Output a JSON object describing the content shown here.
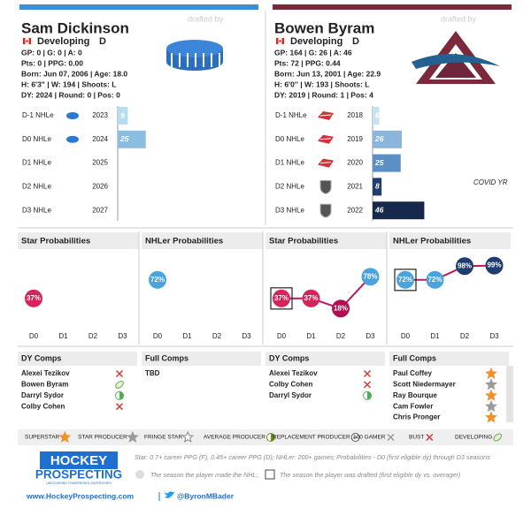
{
  "players": [
    {
      "name": "Sam Dickinson",
      "drafted_by": "drafted by",
      "color": "#3a8fd6",
      "status": "Developing",
      "position": "D",
      "stats": [
        "GP: 0 | G: 0 | A: 0",
        "Pts: 0 | PPG: 0.00",
        "Born: Jun 07, 2006 | Age: 18.0",
        "H: 6'3\" | W: 194 | Shoots: L",
        "DY: 2024 | Round: 0 | Pos: 0"
      ],
      "team_logo": "puck",
      "nhle": [
        {
          "label": "D-1 NHLe",
          "logo": "OHL",
          "year": 2023,
          "value": 9,
          "color": "#b9dcf2"
        },
        {
          "label": "D0 NHLe",
          "logo": "OHL",
          "year": 2024,
          "value": 25,
          "color": "#8bbde0"
        },
        {
          "label": "D1 NHLe",
          "logo": null,
          "year": 2025,
          "value": null,
          "color": null
        },
        {
          "label": "D2 NHLe",
          "logo": null,
          "year": 2026,
          "value": null,
          "color": null
        },
        {
          "label": "D3 NHLe",
          "logo": null,
          "year": 2027,
          "value": null,
          "color": null
        }
      ],
      "note": null,
      "probabilities": [
        {
          "title": "Star Probabilities",
          "categories": [
            "D0",
            "D1",
            "D2",
            "D3"
          ],
          "values": [
            37,
            null,
            null,
            null
          ],
          "value_labels": [
            "37%",
            null,
            null,
            null
          ],
          "colors": [
            "#d6245a",
            null,
            null,
            null
          ],
          "ylim": [
            0,
            100
          ],
          "drafted_box": null
        },
        {
          "title": "NHLer Probabilities",
          "categories": [
            "D0",
            "D1",
            "D2",
            "D3"
          ],
          "values": [
            72,
            null,
            null,
            null
          ],
          "value_labels": [
            "72%",
            null,
            null,
            null
          ],
          "colors": [
            "#4aa3df",
            null,
            null,
            null
          ],
          "ylim": [
            0,
            100
          ],
          "drafted_box": null
        }
      ],
      "comps": [
        {
          "title": "DY Comps",
          "rows": [
            {
              "name": "Alexei Tezikov",
              "icon": "bust"
            },
            {
              "name": "Bowen Byram",
              "icon": "developing"
            },
            {
              "name": "Darryl Sydor",
              "icon": "replacement"
            },
            {
              "name": "Colby Cohen",
              "icon": "bust"
            }
          ]
        },
        {
          "title": "Full Comps",
          "rows": [
            {
              "name": "TBD",
              "icon": null
            }
          ]
        }
      ]
    },
    {
      "name": "Bowen Byram",
      "drafted_by": "drafted by",
      "color": "#7a2a3a",
      "status": "Developing",
      "position": "D",
      "stats": [
        "GP: 164 | G: 26 | A: 46",
        "Pts: 72 | PPG: 0.44",
        "Born: Jun 13, 2001 | Age: 22.9",
        "H: 6'0'' | W: 193 | Shoots: L",
        "DY: 2019 | Round: 1 | Pos: 4"
      ],
      "team_logo": "avalanche",
      "nhle": [
        {
          "label": "D-1 NHLe",
          "logo": "WHL",
          "year": 2018,
          "value": 6,
          "color": "#c9e2f3"
        },
        {
          "label": "D0 NHLe",
          "logo": "WHL",
          "year": 2019,
          "value": 26,
          "color": "#8bb5da"
        },
        {
          "label": "D1 NHLe",
          "logo": "WHL",
          "year": 2020,
          "value": 25,
          "color": "#5c8fc4"
        },
        {
          "label": "D2 NHLe",
          "logo": "NHL",
          "year": 2021,
          "value": 8,
          "color": "#1f3d70"
        },
        {
          "label": "D3 NHLe",
          "logo": "NHL",
          "year": 2022,
          "value": 46,
          "color": "#16284c"
        }
      ],
      "note": "COVID YR",
      "probabilities": [
        {
          "title": "Star Probabilities",
          "categories": [
            "D0",
            "D1",
            "D2",
            "D3"
          ],
          "values": [
            37,
            37,
            18,
            78
          ],
          "value_labels": [
            "37%",
            "37%",
            "18%",
            "78%"
          ],
          "colors": [
            "#d6245a",
            "#d6245a",
            "#b01050",
            "#4aa3df"
          ],
          "ylim": [
            0,
            100
          ],
          "drafted_box": 0
        },
        {
          "title": "NHLer Probabilities",
          "categories": [
            "D0",
            "D1",
            "D2",
            "D3"
          ],
          "values": [
            72,
            72,
            98,
            99
          ],
          "value_labels": [
            "72%",
            "72%",
            "98%",
            "99%"
          ],
          "colors": [
            "#4aa3df",
            "#4aa3df",
            "#1f3d70",
            "#1f3d70"
          ],
          "ylim": [
            0,
            100
          ],
          "drafted_box": 0
        }
      ],
      "comps": [
        {
          "title": "DY Comps",
          "rows": [
            {
              "name": "Alexei Tezikov",
              "icon": "bust"
            },
            {
              "name": "Colby Cohen",
              "icon": "bust"
            },
            {
              "name": "Darryl Sydor",
              "icon": "replacement"
            }
          ]
        },
        {
          "title": "Full Comps",
          "rows": [
            {
              "name": "Paul Coffey",
              "icon": "superstar"
            },
            {
              "name": "Scott Niedermayer",
              "icon": "star"
            },
            {
              "name": "Ray Bourque",
              "icon": "superstar"
            },
            {
              "name": "Cam Fowler",
              "icon": "star"
            },
            {
              "name": "Chris Pronger",
              "icon": "superstar"
            }
          ]
        }
      ]
    }
  ],
  "legend": [
    {
      "label": "SUPERSTAR",
      "icon": "superstar"
    },
    {
      "label": "STAR PRODUCER",
      "icon": "star"
    },
    {
      "label": "FRINGE STAR",
      "icon": "fringe"
    },
    {
      "label": "AVERAGE PRODUCER",
      "icon": "average"
    },
    {
      "label": "REPLACEMENT PRODUCER",
      "icon": "minus"
    },
    {
      "label": "100 GAMER",
      "icon": "gamer"
    },
    {
      "label": "BUST",
      "icon": "bust"
    },
    {
      "label": "DEVELOPING",
      "icon": "developing"
    }
  ],
  "footer": {
    "logo_top": "HOCKEY",
    "logo_bottom": "PROSPECTING",
    "tagline": "UNCOVERING TOMORROW'S SUPERSTARS",
    "url": "www.HockeyProspecting.com",
    "twitter": "@ByronMBader",
    "definition": "Star: 0.7+ career PPG (F), 0.45+ career PPG (D); NHLer: 200+ games; Probabilities - D0 (first eligible dy) through D3 seasons",
    "made_nhl": "The season the player made the NHL;",
    "drafted": "The season the player was drafted (first eligible dy vs. overager)"
  }
}
